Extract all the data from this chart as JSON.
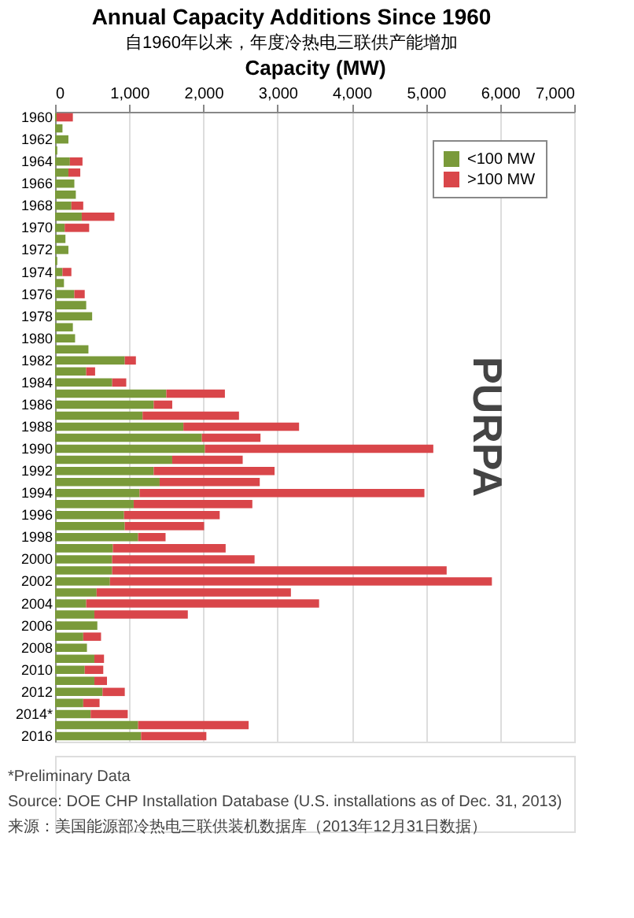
{
  "chart_data": {
    "type": "bar",
    "title": "Annual Capacity Additions Since 1960",
    "subtitle": "自1960年以来，年度冷热电三联供产能增加",
    "xlabel": "Capacity (MW)",
    "orientation": "horizontal",
    "stacked": true,
    "categories": [
      "1960",
      null,
      "1962",
      null,
      "1964",
      null,
      "1966",
      null,
      "1968",
      null,
      "1970",
      null,
      "1972",
      null,
      "1974",
      null,
      "1976",
      null,
      "1978",
      null,
      "1980",
      null,
      "1982",
      null,
      "1984",
      null,
      "1986",
      null,
      "1988",
      null,
      "1990",
      null,
      "1992",
      null,
      "1994",
      null,
      "1996",
      null,
      "1998",
      null,
      "2000",
      null,
      "2002",
      null,
      "2004",
      null,
      "2006",
      null,
      "2008",
      null,
      "2010",
      null,
      "2012",
      null,
      "2014*",
      null,
      "2016"
    ],
    "series": [
      {
        "name": "<100 MW",
        "color": "#7a9a3a",
        "values": [
          20,
          100,
          180,
          30,
          200,
          180,
          260,
          280,
          220,
          360,
          130,
          140,
          180,
          30,
          100,
          120,
          260,
          420,
          500,
          240,
          270,
          450,
          940,
          420,
          770,
          1500,
          1330,
          1180,
          1730,
          1980,
          2020,
          1580,
          1330,
          1410,
          1140,
          1060,
          930,
          940,
          1120,
          780,
          770,
          770,
          740,
          560,
          420,
          530,
          570,
          380,
          430,
          530,
          400,
          530,
          640,
          380,
          480,
          1120,
          1160
        ]
      },
      {
        "name": ">100 MW",
        "color": "#d9464a",
        "values": [
          220,
          0,
          0,
          0,
          170,
          160,
          0,
          0,
          160,
          440,
          330,
          0,
          0,
          0,
          120,
          0,
          140,
          0,
          0,
          0,
          0,
          0,
          150,
          120,
          190,
          790,
          250,
          1300,
          1560,
          790,
          3080,
          950,
          1630,
          1350,
          3840,
          1600,
          1290,
          1070,
          370,
          1520,
          1920,
          4510,
          5150,
          2620,
          3140,
          1260,
          0,
          240,
          0,
          130,
          250,
          170,
          300,
          220,
          500,
          1490,
          880
        ]
      }
    ],
    "xlim": [
      0,
      7000
    ],
    "xticks": [
      0,
      {
        "value": 1000,
        "label": "1,000"
      },
      {
        "value": 2000,
        "label": "2,000"
      },
      {
        "value": 3000,
        "label": "3,000"
      },
      {
        "value": 4000,
        "label": "4,000"
      },
      {
        "value": 5000,
        "label": "5,000"
      },
      {
        "value": 6000,
        "label": "6,000"
      },
      {
        "value": 7000,
        "label": "7,000"
      }
    ],
    "grid": "x",
    "legend": "top right",
    "annotations": [
      "PURPA",
      "*Preliminary Data",
      "Source: DOE CHP Installation Database (U.S. installations as of Dec. 31, 2013)",
      "来源：美国能源部冷热电三联供装机数据库（2013年12月31日数据）"
    ]
  }
}
